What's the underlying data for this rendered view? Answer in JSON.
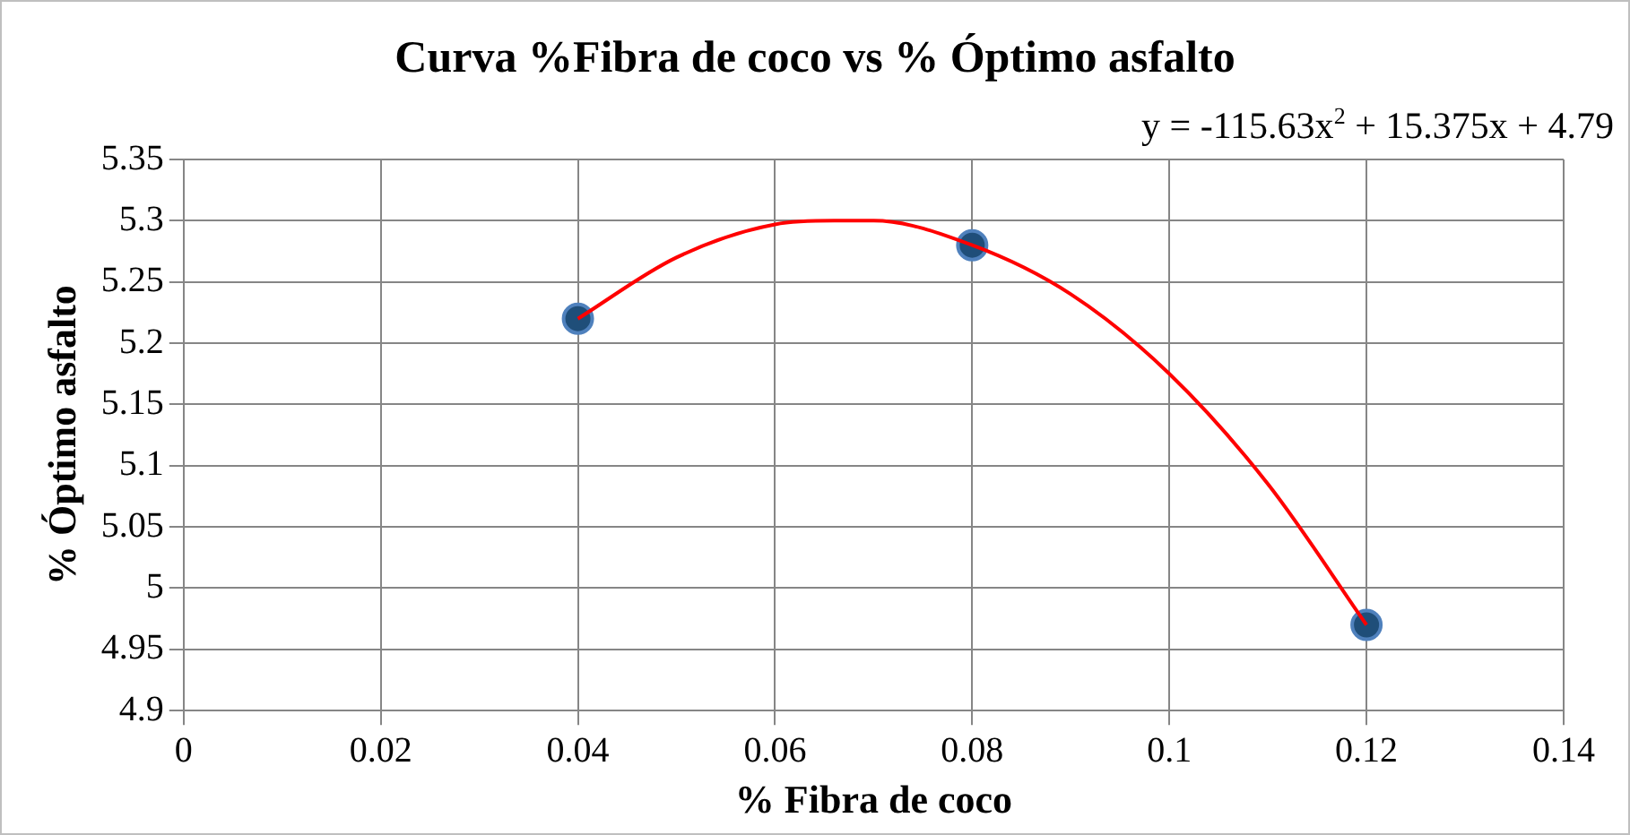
{
  "chart_data": {
    "type": "scatter",
    "title": "Curva %Fibra de coco vs % Óptimo asfalto",
    "xlabel": "% Fibra de coco",
    "ylabel": "% Óptimo asfalto",
    "annotations": [
      "y = -115.63x$^{2}$ + 15.375x + 4.79"
    ],
    "x": [
      0.04,
      0.08,
      0.12
    ],
    "series": [
      {
        "color": "#1f4e79",
        "values": [
          5.22,
          5.28,
          4.97
        ]
      },
      {
        "type": "line",
        "marker": "none",
        "color": "#ff0000",
        "x": [
          0.04,
          0.05,
          0.06,
          0.066,
          0.07,
          0.08,
          0.09,
          0.1,
          0.11,
          0.12
        ],
        "values": [
          5.22,
          5.27,
          5.297,
          5.3,
          5.3,
          5.28,
          5.24,
          5.175,
          5.085,
          4.97
        ]
      }
    ],
    "xlim": [
      0,
      0.14
    ],
    "xticks": [
      0,
      0.02,
      0.04,
      0.06,
      0.08,
      0.1,
      0.12,
      0.14
    ],
    "ylim": [
      4.9,
      5.35
    ],
    "yticks": [
      4.9,
      4.95,
      5,
      5.05,
      5.1,
      5.15,
      5.2,
      5.25,
      5.3,
      5.35
    ],
    "grid": true,
    "marker": "circle",
    "line_style": "solid"
  }
}
